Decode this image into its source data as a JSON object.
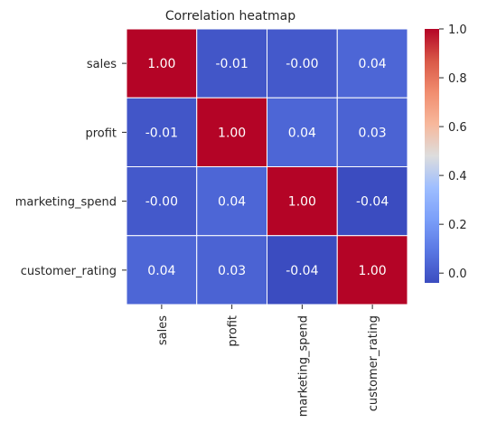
{
  "chart_data": {
    "type": "heatmap",
    "title": "Correlation heatmap",
    "xlabel": "",
    "ylabel": "",
    "rows": [
      "sales",
      "profit",
      "marketing_spend",
      "customer_rating"
    ],
    "columns": [
      "sales",
      "profit",
      "marketing_spend",
      "customer_rating"
    ],
    "values": [
      [
        1.0,
        -0.01,
        -0.0,
        0.04
      ],
      [
        -0.01,
        1.0,
        0.04,
        0.03
      ],
      [
        -0.0,
        0.04,
        1.0,
        -0.04
      ],
      [
        0.04,
        0.03,
        -0.04,
        1.0
      ]
    ],
    "cell_labels": [
      [
        "1.00",
        "-0.01",
        "-0.00",
        "0.04"
      ],
      [
        "-0.01",
        "1.00",
        "0.04",
        "0.03"
      ],
      [
        "-0.00",
        "0.04",
        "1.00",
        "-0.04"
      ],
      [
        "0.04",
        "0.03",
        "-0.04",
        "1.00"
      ]
    ],
    "colormap": "coolwarm",
    "colorbar": {
      "vmin": -0.04,
      "vmax": 1.0,
      "ticks": [
        0.0,
        0.2,
        0.4,
        0.6,
        0.8,
        1.0
      ],
      "tick_labels": [
        "0.0",
        "0.2",
        "0.4",
        "0.6",
        "0.8",
        "1.0"
      ]
    },
    "grid": true,
    "legend": "colorbar-right"
  }
}
